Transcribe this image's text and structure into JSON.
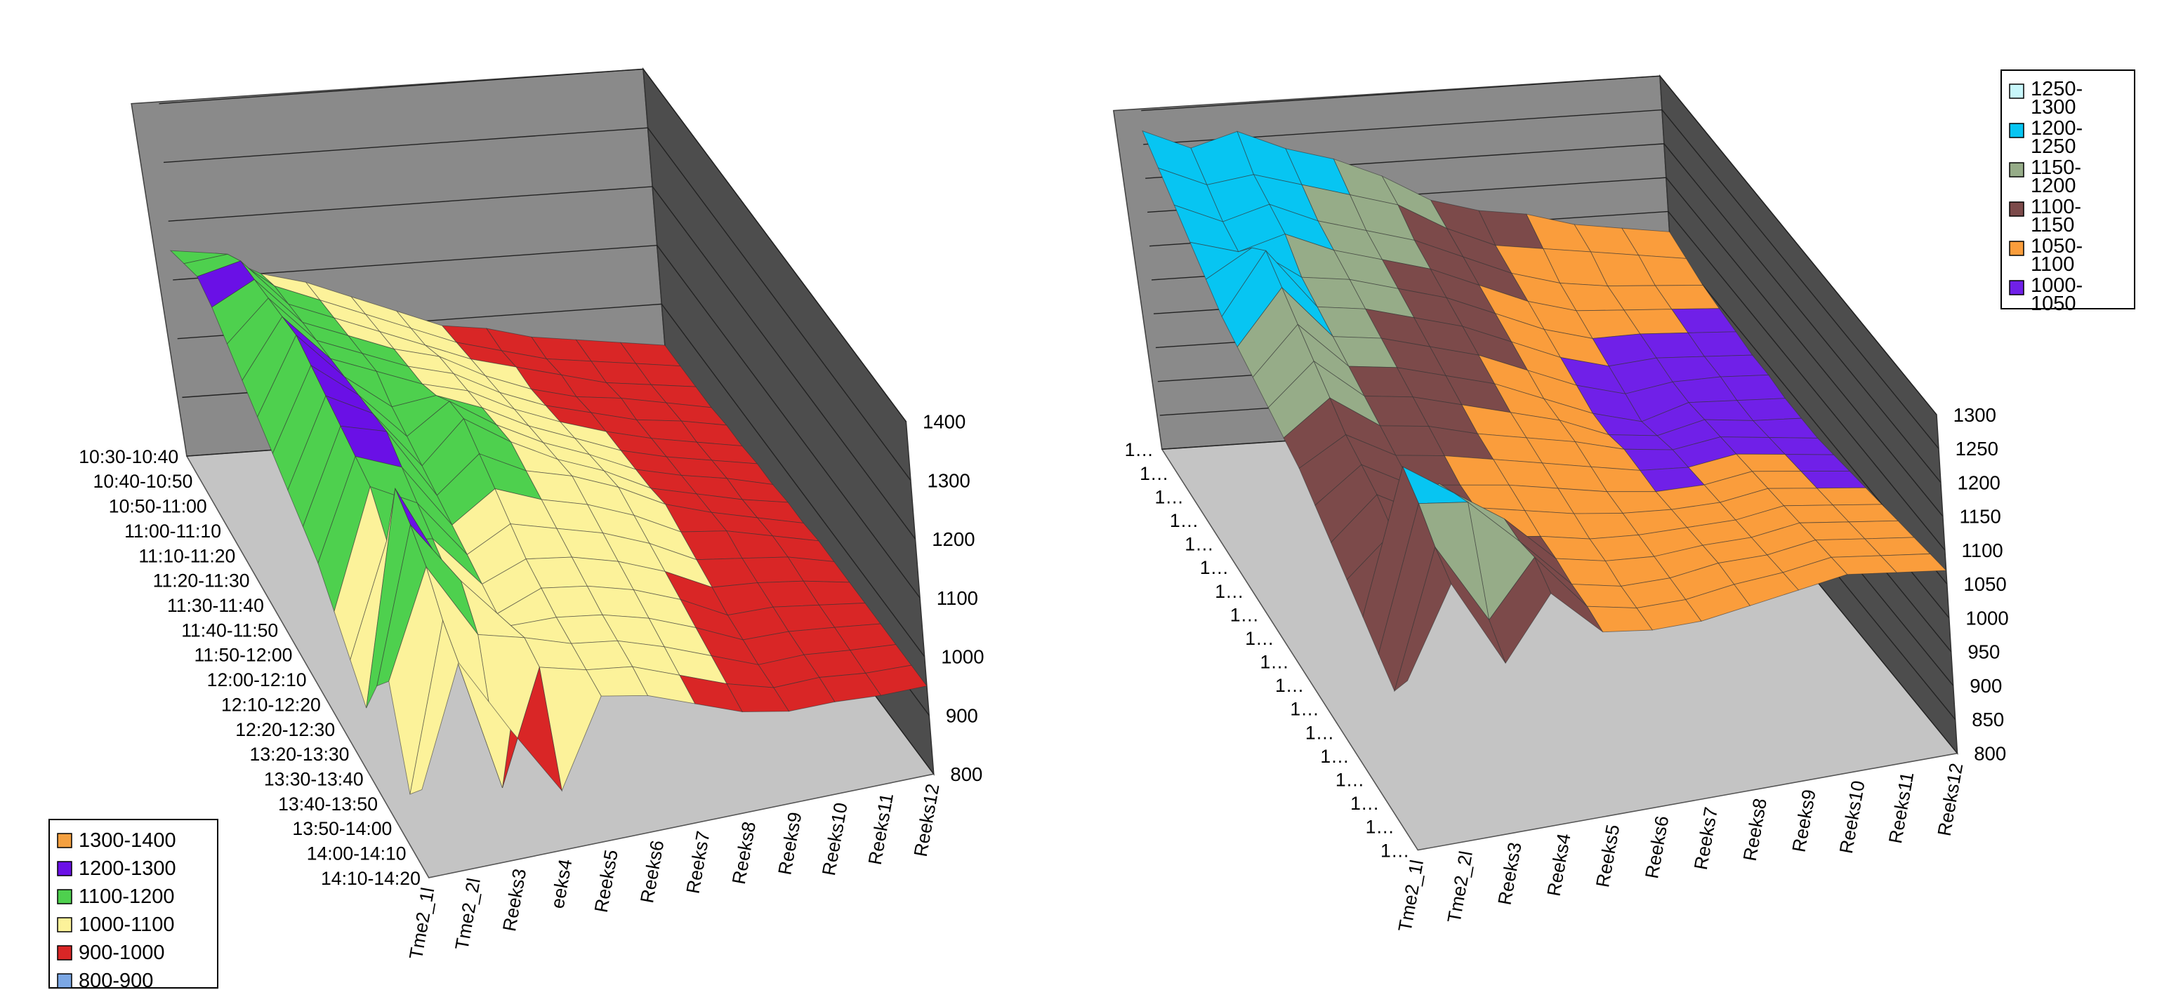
{
  "charts": [
    {
      "type": "surface",
      "view": "3d",
      "row_labels": [
        "10:30-10:40",
        "10:40-10:50",
        "10:50-11:00",
        "11:00-11:10",
        "11:10-11:20",
        "11:20-11:30",
        "11:30-11:40",
        "11:40-11:50",
        "11:50-12:00",
        "12:00-12:10",
        "12:10-12:20",
        "12:20-12:30",
        "13:20-13:30",
        "13:30-13:40",
        "13:40-13:50",
        "13:50-14:00",
        "14:00-14:10",
        "14:10-14:20"
      ],
      "series_labels": [
        "Tme2_1l",
        "Tme2_2l",
        "Reeks3",
        "eeks4",
        "Reeks5",
        "Reeks6",
        "Reeks7",
        "Reeks8",
        "Reeks9",
        "Reeks10",
        "Reeks11",
        "Reeks12"
      ],
      "z_ticks": [
        "800",
        "900",
        "1000",
        "1100",
        "1200",
        "1300",
        "1400"
      ],
      "zlim": [
        800,
        1400
      ],
      "legend_position": "bottom-left",
      "legend": [
        {
          "label": "1300-1400",
          "color": "#f4a040"
        },
        {
          "label": "1200-1300",
          "color": "#6a10e6"
        },
        {
          "label": "1100-1200",
          "color": "#4ed04e"
        },
        {
          "label": "1000-1100",
          "color": "#fcf29a"
        },
        {
          "label": "900-1000",
          "color": "#d92626"
        },
        {
          "label": "800-900",
          "color": "#7ba7e4"
        }
      ],
      "values": [
        [
          1150,
          1140,
          1100,
          1080,
          1050,
          1020,
          990,
          980,
          960,
          950,
          940,
          930
        ],
        [
          1170,
          1180,
          1120,
          1090,
          1060,
          1030,
          1000,
          980,
          960,
          950,
          940,
          930
        ],
        [
          1190,
          1210,
          1130,
          1100,
          1070,
          1040,
          1010,
          990,
          970,
          950,
          940,
          930
        ],
        [
          1180,
          1220,
          1140,
          1110,
          1080,
          1060,
          1020,
          990,
          970,
          960,
          945,
          930
        ],
        [
          1160,
          1230,
          1150,
          1120,
          1090,
          1070,
          1030,
          1000,
          980,
          960,
          950,
          935
        ],
        [
          1140,
          1240,
          1160,
          1130,
          1100,
          1080,
          1040,
          1010,
          985,
          965,
          950,
          935
        ],
        [
          1120,
          1250,
          1170,
          1110,
          1120,
          1090,
          1050,
          1020,
          990,
          970,
          955,
          940
        ],
        [
          1100,
          1240,
          1180,
          1100,
          1150,
          1100,
          1060,
          1030,
          995,
          975,
          960,
          940
        ],
        [
          1080,
          1230,
          1190,
          1090,
          1160,
          1110,
          1070,
          1040,
          1000,
          980,
          960,
          945
        ],
        [
          1060,
          1220,
          1200,
          1080,
          1140,
          1100,
          1080,
          1050,
          1010,
          985,
          965,
          945
        ],
        [
          1040,
          1210,
          1180,
          1070,
          1120,
          1090,
          1070,
          1040,
          1000,
          990,
          970,
          950
        ],
        [
          1000,
          1200,
          1160,
          1060,
          1100,
          1080,
          1060,
          1030,
          990,
          980,
          970,
          950
        ],
        [
          960,
          1150,
          1140,
          1050,
          1080,
          1070,
          1050,
          1020,
          980,
          975,
          965,
          950
        ],
        [
          920,
          1280,
          1120,
          1040,
          1070,
          1060,
          1040,
          1010,
          970,
          970,
          960,
          950
        ],
        [
          1000,
          1260,
          1150,
          1060,
          1060,
          1050,
          1030,
          1000,
          965,
          965,
          958,
          950
        ],
        [
          1050,
          1230,
          1100,
          1080,
          1055,
          1045,
          1020,
          990,
          960,
          962,
          955,
          950
        ],
        [
          900,
          1180,
          880,
          1070,
          1050,
          1040,
          1010,
          980,
          958,
          960,
          952,
          950
        ],
        [
          950,
          1150,
          1020,
          900,
          1045,
          1030,
          1000,
          970,
          955,
          955,
          950,
          950
        ]
      ]
    },
    {
      "type": "surface",
      "view": "3d",
      "row_labels": [
        "1…",
        "1…",
        "1…",
        "1…",
        "1…",
        "1…",
        "1…",
        "1…",
        "1…",
        "1…",
        "1…",
        "1…",
        "1…",
        "1…",
        "1…",
        "1…",
        "1…",
        "1…"
      ],
      "series_labels": [
        "Tme2_1l",
        "Tme2_2l",
        "Reeks3",
        "Reeks4",
        "Reeks5",
        "Reeks6",
        "Reeks7",
        "Reeks8",
        "Reeks9",
        "Reeks10",
        "Reeks11",
        "Reeks12"
      ],
      "z_ticks": [
        "800",
        "850",
        "900",
        "950",
        "1000",
        "1050",
        "1100",
        "1150",
        "1200",
        "1250",
        "1300"
      ],
      "zlim": [
        800,
        1300
      ],
      "legend_position": "top-right",
      "legend": [
        {
          "label": "1250-1300",
          "color": "#c8f7fb"
        },
        {
          "label": "1200-1250",
          "color": "#07c5f2"
        },
        {
          "label": "1150-1200",
          "color": "#96ac88"
        },
        {
          "label": "1100-1150",
          "color": "#7c4a4a"
        },
        {
          "label": "1050-1100",
          "color": "#fa9d3c"
        },
        {
          "label": "1000-1050",
          "color": "#7020e8"
        }
      ],
      "values": [
        [
          1270,
          1240,
          1260,
          1230,
          1210,
          1180,
          1140,
          1120,
          1110,
          1090,
          1080,
          1070
        ],
        [
          1250,
          1220,
          1230,
          1210,
          1190,
          1170,
          1130,
          1100,
          1090,
          1080,
          1070,
          1060
        ],
        [
          1230,
          1200,
          1220,
          1190,
          1170,
          1150,
          1120,
          1090,
          1070,
          1060,
          1055,
          1050
        ],
        [
          1210,
          1190,
          1210,
          1180,
          1160,
          1140,
          1110,
          1080,
          1060,
          1055,
          1050,
          1045
        ],
        [
          1190,
          1230,
          1180,
          1170,
          1150,
          1130,
          1100,
          1070,
          1050,
          1050,
          1045,
          1040
        ],
        [
          1170,
          1260,
          1170,
          1160,
          1140,
          1120,
          1090,
          1060,
          1040,
          1045,
          1040,
          1035
        ],
        [
          1160,
          1240,
          1160,
          1150,
          1130,
          1110,
          1080,
          1050,
          1030,
          1040,
          1040,
          1035
        ],
        [
          1150,
          1220,
          1150,
          1140,
          1120,
          1100,
          1070,
          1040,
          1020,
          1040,
          1035,
          1030
        ],
        [
          1140,
          1200,
          1140,
          1130,
          1110,
          1090,
          1070,
          1040,
          1030,
          1045,
          1035,
          1030
        ],
        [
          1130,
          1180,
          1130,
          1120,
          1100,
          1085,
          1070,
          1050,
          1040,
          1050,
          1040,
          1030
        ],
        [
          1120,
          1160,
          1120,
          1110,
          1095,
          1080,
          1065,
          1050,
          1045,
          1055,
          1045,
          1035
        ],
        [
          1100,
          1150,
          1110,
          1100,
          1090,
          1075,
          1060,
          1050,
          1050,
          1060,
          1050,
          1040
        ],
        [
          1080,
          1140,
          1100,
          1100,
          1085,
          1070,
          1060,
          1055,
          1055,
          1065,
          1055,
          1045
        ],
        [
          1060,
          1120,
          1180,
          1090,
          1080,
          1065,
          1060,
          1060,
          1060,
          1070,
          1060,
          1050
        ],
        [
          1040,
          1250,
          1200,
          1150,
          1080,
          1065,
          1060,
          1065,
          1065,
          1075,
          1065,
          1055
        ],
        [
          1020,
          1230,
          1220,
          1150,
          1075,
          1060,
          1060,
          1070,
          1070,
          1080,
          1070,
          1060
        ],
        [
          1000,
          1200,
          1080,
          1160,
          1075,
          1060,
          1060,
          1070,
          1075,
          1085,
          1075,
          1065
        ],
        [
          1050,
          1180,
          1050,
          1140,
          1070,
          1060,
          1060,
          1070,
          1080,
          1090,
          1080,
          1070
        ]
      ]
    }
  ]
}
